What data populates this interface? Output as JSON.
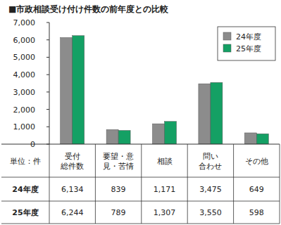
{
  "chart_data": {
    "type": "bar",
    "title": "■市政相談受け付け件数の前年度との比較",
    "y_label": "単位：件",
    "categories": [
      "受付\n総件数",
      "要望・意\n見・苦情",
      "相談",
      "問い\n合わせ",
      "その他"
    ],
    "series": [
      {
        "name": "24年度",
        "color": "#8c8c8c",
        "values": [
          6134,
          839,
          1171,
          3475,
          649
        ],
        "value_labels": [
          "6,134",
          "839",
          "1,171",
          "3,475",
          "649"
        ]
      },
      {
        "name": "25年度",
        "color": "#14a064",
        "values": [
          6244,
          789,
          1307,
          3550,
          598
        ],
        "value_labels": [
          "6,244",
          "789",
          "1,307",
          "3,550",
          "598"
        ]
      }
    ],
    "ylim": [
      0,
      7000
    ],
    "yticks": [
      0,
      {
        "value": 1000,
        "label": "1,000"
      },
      {
        "value": 2000,
        "label": "2,000"
      },
      {
        "value": 3000,
        "label": "3,000"
      },
      {
        "value": 4000,
        "label": "4,000"
      },
      {
        "value": 5000,
        "label": "5,000"
      },
      {
        "value": 6000,
        "label": "6,000"
      },
      {
        "value": 7000,
        "label": "7,000"
      }
    ],
    "grid": false,
    "legend": "top-right"
  }
}
